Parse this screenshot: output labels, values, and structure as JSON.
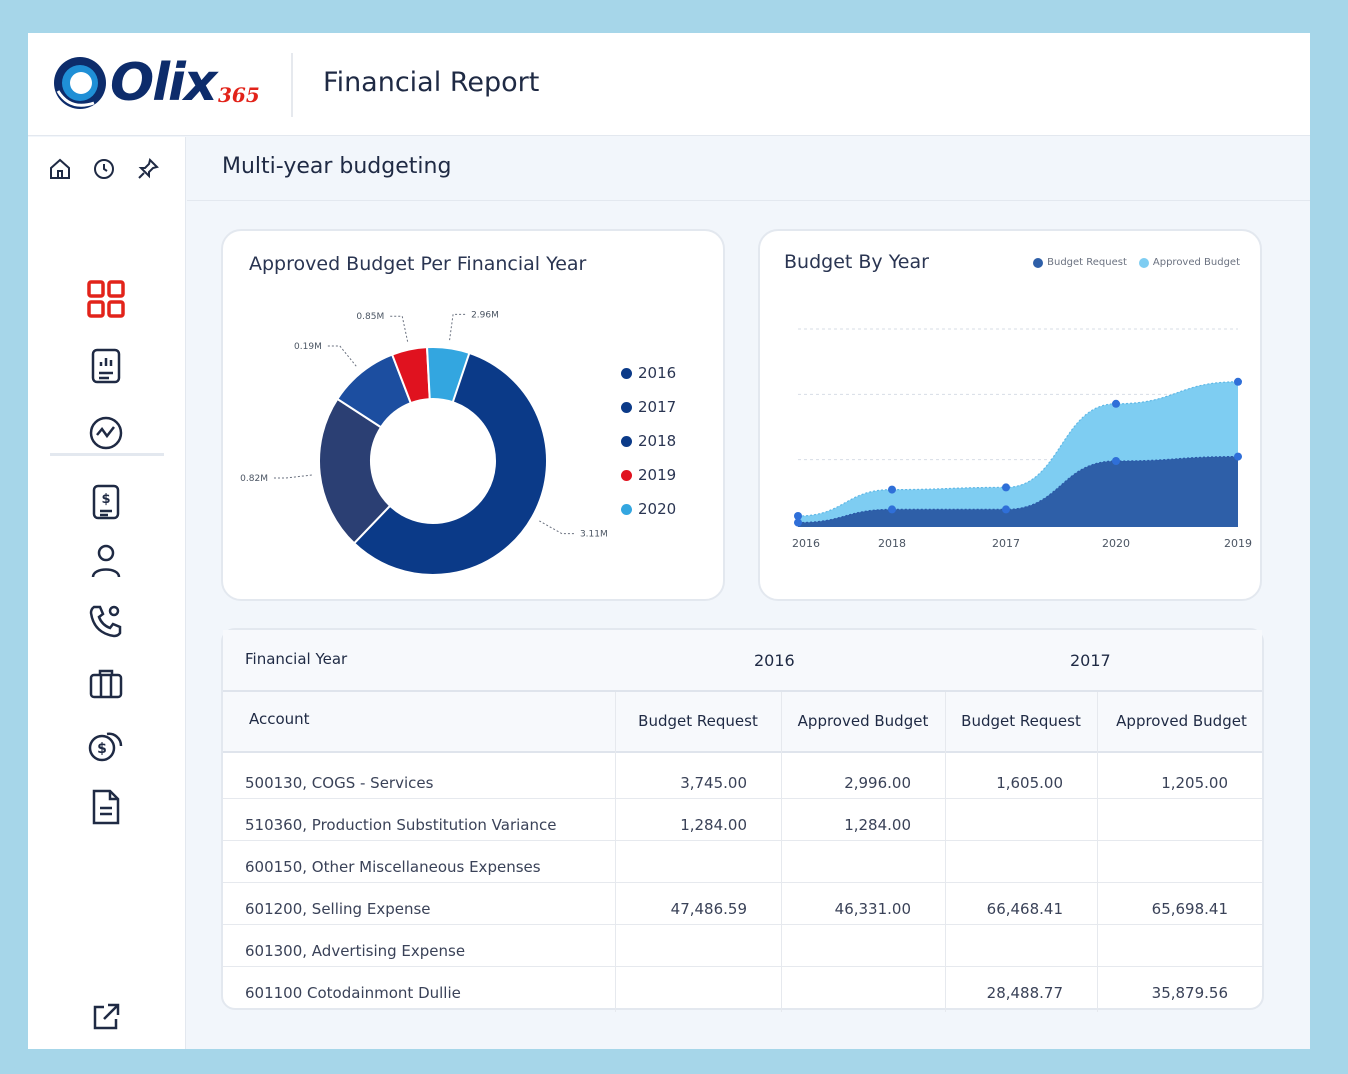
{
  "header": {
    "logo_text": "Olix",
    "logo_sub": "365",
    "title": "Financial Report"
  },
  "subheader": {
    "title": "Multi-year budgeting"
  },
  "sidebar": {
    "top_icons": [
      "home-icon",
      "clock-icon",
      "pin-icon"
    ],
    "items": [
      "dashboard-grid-icon",
      "report-icon",
      "analytics-icon",
      "invoice-icon",
      "user-icon",
      "phone-icon",
      "briefcase-icon",
      "money-icon",
      "document-icon"
    ],
    "bottom_icon": "external-link-icon",
    "accent": "#e2231a",
    "icon_color": "#1f2a44"
  },
  "donut_card": {
    "title": "Approved Budget Per Financial Year",
    "chart_data": {
      "type": "pie",
      "donut": true,
      "labels": [
        "2016",
        "2017",
        "2018",
        "2019",
        "2020"
      ],
      "values": [
        3.11,
        0.82,
        0.19,
        0.85,
        2.96
      ],
      "data_labels": [
        "3.11M",
        "0.82M",
        "0.19M",
        "0.85M",
        "2.96M"
      ],
      "slice_shares": [
        0.58,
        0.22,
        0.1,
        0.05,
        0.06
      ],
      "colors": [
        "#0b3a88",
        "#2b3f73",
        "#1c4ea0",
        "#e0121f",
        "#33a6e0"
      ],
      "legend_colors": [
        "#0b3a88",
        "#0b3a88",
        "#0b3a88",
        "#e0121f",
        "#33a6e0"
      ],
      "legend_position": "right"
    }
  },
  "area_card": {
    "title": "Budget By Year",
    "chart_data": {
      "type": "area",
      "categories": [
        "2016",
        "2018",
        "2017",
        "2020",
        "2019"
      ],
      "series": [
        {
          "name": "Budget Request",
          "values": [
            0.1,
            0.4,
            0.4,
            1.5,
            1.6
          ],
          "color": "#2e5fa8"
        },
        {
          "name": "Approved Budget",
          "values": [
            0.25,
            0.85,
            0.9,
            2.8,
            3.3
          ],
          "color": "#7ecdf2"
        }
      ],
      "ylim": [
        0,
        4.5
      ],
      "grid": true,
      "legend_position": "top-right"
    }
  },
  "table": {
    "year_label": "Financial Year",
    "years": [
      "2016",
      "2017"
    ],
    "columns": [
      "Account",
      "Budget Request",
      "Approved Budget",
      "Budget Request",
      "Approved Budget"
    ],
    "rows": [
      [
        "500130, COGS - Services",
        "3,745.00",
        "2,996.00",
        "1,605.00",
        "1,205.00"
      ],
      [
        "510360, Production Substitution Variance",
        "1,284.00",
        "1,284.00",
        "",
        ""
      ],
      [
        "600150, Other Miscellaneous Expenses",
        "",
        "",
        "",
        ""
      ],
      [
        "601200, Selling Expense",
        "47,486.59",
        "46,331.00",
        "66,468.41",
        "65,698.41"
      ],
      [
        "601300, Advertising Expense",
        "",
        "",
        "",
        ""
      ],
      [
        "601100 Cotodainmont Dullie",
        "",
        "",
        "28,488.77",
        "35,879.56"
      ]
    ]
  }
}
